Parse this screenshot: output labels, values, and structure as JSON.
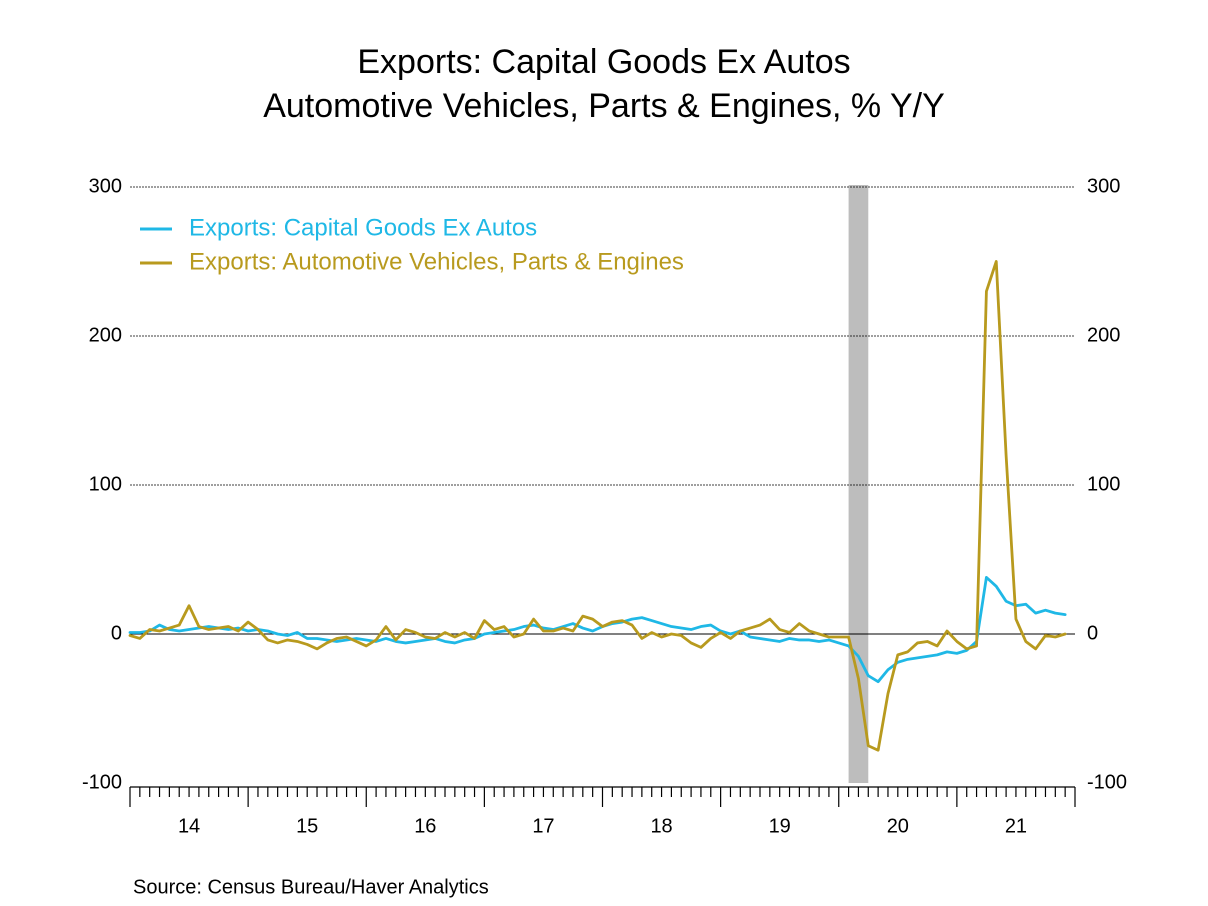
{
  "chart_data": {
    "type": "line",
    "title": "Exports: Capital Goods Ex Autos",
    "subtitle": "Automotive Vehicles, Parts & Engines, % Y/Y",
    "source": "Source:  Census Bureau/Haver Analytics",
    "categories": [
      null,
      null,
      null,
      null,
      null,
      null,
      "14",
      null,
      null,
      null,
      null,
      null,
      null,
      null,
      null,
      null,
      null,
      null,
      "15",
      null,
      null,
      null,
      null,
      null,
      null,
      null,
      null,
      null,
      null,
      null,
      "16",
      null,
      null,
      null,
      null,
      null,
      null,
      null,
      null,
      null,
      null,
      null,
      "17",
      null,
      null,
      null,
      null,
      null,
      null,
      null,
      null,
      null,
      null,
      null,
      "18",
      null,
      null,
      null,
      null,
      null,
      null,
      null,
      null,
      null,
      null,
      null,
      "19",
      null,
      null,
      null,
      null,
      null,
      null,
      null,
      null,
      null,
      null,
      null,
      "20",
      null,
      null,
      null,
      null,
      null,
      null,
      null,
      null,
      null,
      null,
      null,
      "21",
      null,
      null,
      null,
      null,
      null
    ],
    "series": [
      {
        "name": "Exports: Capital Goods Ex Autos",
        "color": "#1fb8e6",
        "values": [
          1,
          1,
          2,
          6,
          3,
          2,
          3,
          4,
          5,
          4,
          3,
          4,
          2,
          3,
          2,
          0,
          -1,
          1,
          -3,
          -3,
          -4,
          -5,
          -4,
          -3,
          -4,
          -5,
          -3,
          -5,
          -6,
          -5,
          -4,
          -3,
          -5,
          -6,
          -4,
          -3,
          0,
          1,
          2,
          3,
          5,
          6,
          4,
          3,
          5,
          7,
          4,
          2,
          5,
          7,
          8,
          10,
          11,
          9,
          7,
          5,
          4,
          3,
          5,
          6,
          2,
          0,
          2,
          -2,
          -3,
          -4,
          -5,
          -3,
          -4,
          -4,
          -5,
          -4,
          -6,
          -8,
          -15,
          -28,
          -32,
          -24,
          -19,
          -17,
          -16,
          -15,
          -14,
          -12,
          -13,
          -11,
          -5,
          38,
          32,
          22,
          19,
          20,
          14,
          16,
          14,
          13
        ]
      },
      {
        "name": "Exports: Automotive Vehicles, Parts & Engines",
        "color": "#b89a1e",
        "values": [
          -1,
          -3,
          3,
          2,
          4,
          6,
          19,
          5,
          3,
          4,
          5,
          2,
          8,
          3,
          -4,
          -6,
          -4,
          -5,
          -7,
          -10,
          -6,
          -3,
          -2,
          -5,
          -8,
          -4,
          5,
          -4,
          3,
          1,
          -2,
          -3,
          1,
          -2,
          1,
          -3,
          9,
          3,
          5,
          -2,
          0,
          10,
          2,
          2,
          4,
          2,
          12,
          10,
          5,
          8,
          9,
          6,
          -3,
          1,
          -2,
          0,
          -1,
          -6,
          -9,
          -3,
          1,
          -3,
          2,
          4,
          6,
          10,
          3,
          1,
          7,
          2,
          0,
          -2,
          -2,
          -2,
          -30,
          -75,
          -78,
          -40,
          -14,
          -12,
          -6,
          -5,
          -8,
          2,
          -5,
          -10,
          -8,
          230,
          250,
          120,
          10,
          -5,
          -10,
          -1,
          -2,
          0
        ]
      }
    ],
    "shaded": {
      "from": 73,
      "to": 75,
      "color": "#bdbdbd"
    },
    "ylim": [
      -100,
      300
    ],
    "yticks": [
      -100,
      0,
      100,
      200,
      300
    ],
    "y2lim": [
      -100,
      300
    ],
    "y2ticks": [
      -100,
      0,
      100,
      200,
      300
    ],
    "grid": true,
    "legend": "top-left"
  }
}
